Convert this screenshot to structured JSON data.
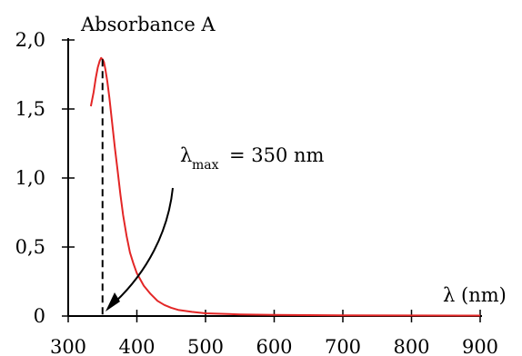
{
  "chart_data": {
    "type": "line",
    "title": "",
    "ylabel": "Absorbance A",
    "xlabel_symbol": "λ",
    "xlabel_unit": "(nm)",
    "xlim": [
      300,
      900
    ],
    "ylim": [
      0,
      2.0
    ],
    "x_ticks": [
      300,
      400,
      500,
      600,
      700,
      800,
      900
    ],
    "x_tick_labels": [
      "300",
      "400",
      "500",
      "600",
      "700",
      "800",
      "900"
    ],
    "y_ticks": [
      0,
      0.5,
      1.0,
      1.5,
      2.0
    ],
    "y_tick_labels": [
      "0",
      "0,5",
      "1,0",
      "1,5",
      "2,0"
    ],
    "grid": false,
    "series": [
      {
        "color": "#e32626",
        "x": [
          333,
          337,
          340,
          343,
          346,
          348,
          350,
          352,
          354,
          357,
          360,
          364,
          368,
          372,
          376,
          380,
          385,
          390,
          395,
          400,
          410,
          420,
          430,
          440,
          450,
          460,
          480,
          500,
          550,
          600,
          700,
          800,
          900
        ],
        "y": [
          1.52,
          1.62,
          1.72,
          1.8,
          1.85,
          1.87,
          1.86,
          1.84,
          1.79,
          1.7,
          1.58,
          1.4,
          1.22,
          1.05,
          0.88,
          0.73,
          0.58,
          0.46,
          0.38,
          0.31,
          0.22,
          0.16,
          0.11,
          0.08,
          0.06,
          0.045,
          0.03,
          0.02,
          0.012,
          0.008,
          0.005,
          0.004,
          0.003
        ]
      }
    ],
    "annotation": {
      "symbol": "λ",
      "subscript": "max",
      "text": "= 350 nm",
      "lambda_max": 350
    }
  }
}
